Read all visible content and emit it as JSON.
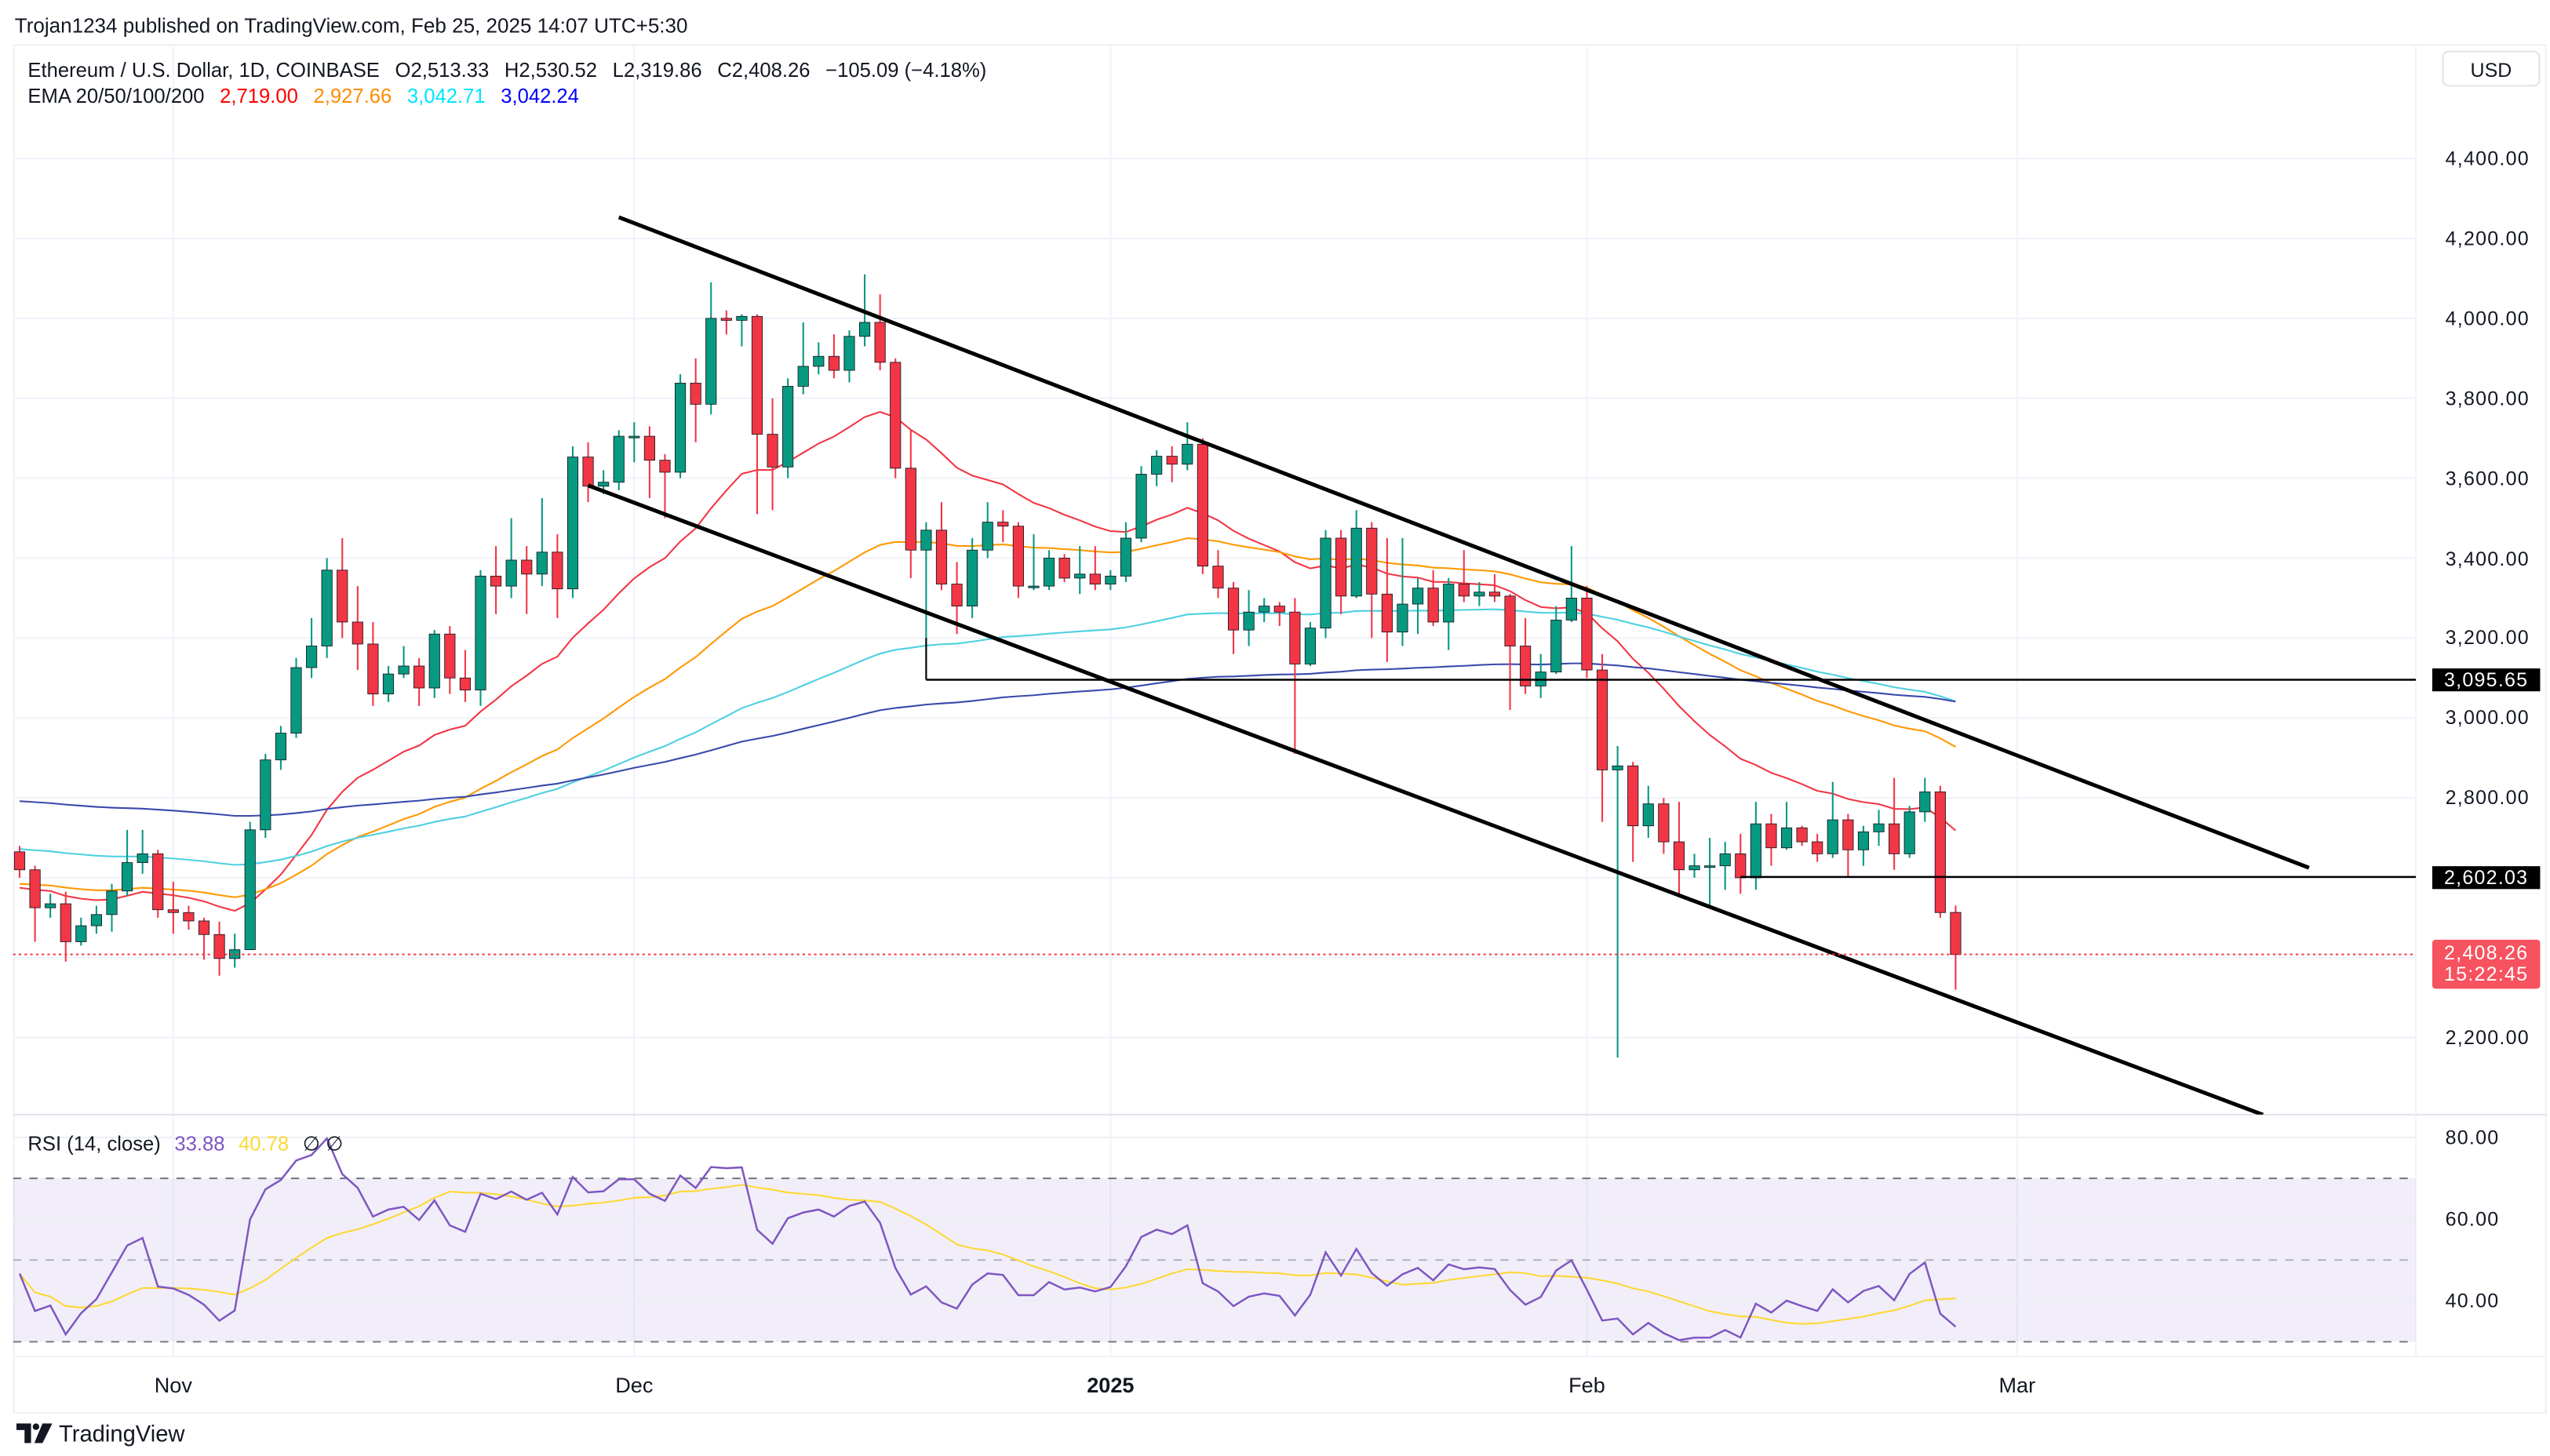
{
  "header": {
    "publisher": "Trojan1234 published on TradingView.com, Feb 25, 2025 14:07 UTC+5:30"
  },
  "legend": {
    "symbol": "Ethereum / U.S. Dollar, 1D, COINBASE",
    "open": "O2,513.33",
    "high": "H2,530.52",
    "low": "L2,319.86",
    "close": "C2,408.26",
    "change": "−105.09 (−4.18%)",
    "ema_title": "EMA 20/50/100/200",
    "ema_values": [
      "2,719.00",
      "2,927.66",
      "3,042.71",
      "3,042.24"
    ],
    "ema_colors": [
      "#ff0000",
      "#ff8c00",
      "#00e5ff",
      "#0000ff"
    ]
  },
  "currency_button": "USD",
  "price_axis": {
    "ticks": [
      "4,400.00",
      "4,200.00",
      "4,000.00",
      "3,800.00",
      "3,600.00",
      "3,400.00",
      "3,200.00",
      "3,000.00",
      "2,800.00",
      "2,200.00"
    ],
    "tick_values": [
      4400,
      4200,
      4000,
      3800,
      3600,
      3400,
      3200,
      3000,
      2800,
      2200
    ],
    "markers": [
      {
        "label": "3,095.65",
        "value": 3095.65,
        "color": "#000000"
      },
      {
        "label": "2,602.03",
        "value": 2602.03,
        "color": "#000000"
      }
    ],
    "last_price": {
      "label": "2,408.26",
      "countdown": "15:22:45",
      "value": 2408.26,
      "color": "#f7525f"
    }
  },
  "time_axis": {
    "labels": [
      {
        "text": "Nov",
        "date": "2024-11-01"
      },
      {
        "text": "Dec",
        "date": "2024-12-01"
      },
      {
        "text": "2025",
        "date": "2025-01-01",
        "bold": true
      },
      {
        "text": "Feb",
        "date": "2025-02-01"
      },
      {
        "text": "Mar",
        "date": "2025-03-01"
      }
    ]
  },
  "rsi": {
    "title": "RSI (14, close)",
    "value": "33.88",
    "ma_value": "40.78",
    "extra": "∅ ∅",
    "color": "#7e57c2",
    "ma_color": "#fdd835",
    "ticks": [
      "80.00",
      "60.00",
      "40.00"
    ],
    "tick_values": [
      80,
      60,
      40
    ],
    "bands": [
      70,
      50,
      30
    ]
  },
  "footer": {
    "logo": "TradingView"
  },
  "chart_data": {
    "type": "candlestick",
    "title": "Ethereum / U.S. Dollar, 1D, COINBASE",
    "start_date": "2024-10-22",
    "ylim": [
      2080,
      4500
    ],
    "grid": true,
    "colors": {
      "up": "#089981",
      "down": "#f23645"
    },
    "ohlc": [
      [
        2665,
        2680,
        2600,
        2620
      ],
      [
        2620,
        2630,
        2440,
        2525
      ],
      [
        2525,
        2560,
        2500,
        2535
      ],
      [
        2535,
        2565,
        2390,
        2440
      ],
      [
        2440,
        2500,
        2430,
        2480
      ],
      [
        2480,
        2530,
        2460,
        2508
      ],
      [
        2508,
        2585,
        2465,
        2567
      ],
      [
        2567,
        2720,
        2555,
        2638
      ],
      [
        2638,
        2720,
        2610,
        2660
      ],
      [
        2660,
        2670,
        2500,
        2520
      ],
      [
        2520,
        2590,
        2460,
        2513
      ],
      [
        2513,
        2530,
        2470,
        2492
      ],
      [
        2492,
        2500,
        2395,
        2458
      ],
      [
        2458,
        2490,
        2355,
        2398
      ],
      [
        2398,
        2460,
        2375,
        2420
      ],
      [
        2420,
        2740,
        2420,
        2720
      ],
      [
        2720,
        2910,
        2700,
        2895
      ],
      [
        2895,
        2980,
        2870,
        2962
      ],
      [
        2962,
        3150,
        2950,
        3126
      ],
      [
        3126,
        3250,
        3100,
        3180
      ],
      [
        3180,
        3400,
        3150,
        3370
      ],
      [
        3370,
        3450,
        3200,
        3240
      ],
      [
        3240,
        3330,
        3120,
        3185
      ],
      [
        3185,
        3240,
        3030,
        3060
      ],
      [
        3060,
        3130,
        3040,
        3110
      ],
      [
        3110,
        3180,
        3100,
        3130
      ],
      [
        3130,
        3150,
        3030,
        3075
      ],
      [
        3075,
        3220,
        3050,
        3210
      ],
      [
        3210,
        3230,
        3060,
        3100
      ],
      [
        3100,
        3170,
        3040,
        3070
      ],
      [
        3070,
        3370,
        3030,
        3355
      ],
      [
        3355,
        3430,
        3260,
        3330
      ],
      [
        3330,
        3500,
        3300,
        3395
      ],
      [
        3395,
        3430,
        3260,
        3360
      ],
      [
        3360,
        3550,
        3330,
        3415
      ],
      [
        3415,
        3460,
        3250,
        3323
      ],
      [
        3323,
        3680,
        3300,
        3653
      ],
      [
        3653,
        3690,
        3540,
        3580
      ],
      [
        3580,
        3620,
        3560,
        3590
      ],
      [
        3590,
        3720,
        3570,
        3705
      ],
      [
        3705,
        3740,
        3640,
        3705
      ],
      [
        3705,
        3730,
        3550,
        3645
      ],
      [
        3645,
        3660,
        3500,
        3615
      ],
      [
        3615,
        3860,
        3600,
        3838
      ],
      [
        3838,
        3900,
        3690,
        3785
      ],
      [
        3785,
        4090,
        3760,
        4000
      ],
      [
        4000,
        4020,
        3960,
        3995
      ],
      [
        3995,
        4010,
        3930,
        4005
      ],
      [
        4005,
        4010,
        3510,
        3710
      ],
      [
        3710,
        3800,
        3520,
        3628
      ],
      [
        3628,
        3850,
        3600,
        3830
      ],
      [
        3830,
        3990,
        3810,
        3880
      ],
      [
        3880,
        3940,
        3860,
        3905
      ],
      [
        3905,
        3960,
        3850,
        3870
      ],
      [
        3870,
        3970,
        3840,
        3955
      ],
      [
        3955,
        4110,
        3930,
        3990
      ],
      [
        3990,
        4060,
        3870,
        3890
      ],
      [
        3890,
        3900,
        3600,
        3625
      ],
      [
        3625,
        3720,
        3350,
        3420
      ],
      [
        3420,
        3490,
        3100,
        3470
      ],
      [
        3470,
        3540,
        3320,
        3335
      ],
      [
        3335,
        3390,
        3210,
        3280
      ],
      [
        3280,
        3450,
        3250,
        3420
      ],
      [
        3420,
        3540,
        3400,
        3490
      ],
      [
        3490,
        3520,
        3440,
        3480
      ],
      [
        3480,
        3490,
        3300,
        3330
      ],
      [
        3330,
        3460,
        3320,
        3330
      ],
      [
        3330,
        3420,
        3320,
        3400
      ],
      [
        3400,
        3410,
        3340,
        3350
      ],
      [
        3350,
        3430,
        3310,
        3360
      ],
      [
        3360,
        3430,
        3320,
        3335
      ],
      [
        3335,
        3370,
        3320,
        3355
      ],
      [
        3355,
        3490,
        3340,
        3450
      ],
      [
        3450,
        3630,
        3440,
        3610
      ],
      [
        3610,
        3670,
        3580,
        3655
      ],
      [
        3655,
        3680,
        3590,
        3635
      ],
      [
        3635,
        3740,
        3620,
        3685
      ],
      [
        3685,
        3700,
        3360,
        3380
      ],
      [
        3380,
        3420,
        3300,
        3325
      ],
      [
        3325,
        3340,
        3160,
        3220
      ],
      [
        3220,
        3320,
        3180,
        3265
      ],
      [
        3265,
        3300,
        3240,
        3280
      ],
      [
        3280,
        3290,
        3230,
        3265
      ],
      [
        3265,
        3300,
        2910,
        3135
      ],
      [
        3135,
        3240,
        3130,
        3225
      ],
      [
        3225,
        3470,
        3200,
        3450
      ],
      [
        3450,
        3470,
        3260,
        3305
      ],
      [
        3305,
        3520,
        3300,
        3475
      ],
      [
        3475,
        3490,
        3200,
        3310
      ],
      [
        3310,
        3450,
        3140,
        3215
      ],
      [
        3215,
        3450,
        3180,
        3285
      ],
      [
        3285,
        3350,
        3210,
        3325
      ],
      [
        3325,
        3370,
        3230,
        3240
      ],
      [
        3240,
        3350,
        3170,
        3335
      ],
      [
        3335,
        3420,
        3290,
        3305
      ],
      [
        3305,
        3340,
        3280,
        3315
      ],
      [
        3315,
        3360,
        3290,
        3305
      ],
      [
        3305,
        3310,
        3020,
        3180
      ],
      [
        3180,
        3250,
        3060,
        3080
      ],
      [
        3080,
        3160,
        3050,
        3115
      ],
      [
        3115,
        3280,
        3110,
        3245
      ],
      [
        3245,
        3430,
        3240,
        3300
      ],
      [
        3300,
        3330,
        3100,
        3120
      ],
      [
        3120,
        3160,
        2740,
        2870
      ],
      [
        2870,
        2930,
        2150,
        2880
      ],
      [
        2880,
        2890,
        2640,
        2730
      ],
      [
        2730,
        2830,
        2700,
        2785
      ],
      [
        2785,
        2800,
        2660,
        2690
      ],
      [
        2690,
        2790,
        2560,
        2620
      ],
      [
        2620,
        2660,
        2600,
        2630
      ],
      [
        2630,
        2700,
        2530,
        2630
      ],
      [
        2630,
        2690,
        2570,
        2660
      ],
      [
        2660,
        2710,
        2560,
        2600
      ],
      [
        2600,
        2790,
        2570,
        2735
      ],
      [
        2735,
        2760,
        2630,
        2675
      ],
      [
        2675,
        2790,
        2670,
        2725
      ],
      [
        2725,
        2730,
        2680,
        2690
      ],
      [
        2690,
        2710,
        2640,
        2660
      ],
      [
        2660,
        2840,
        2650,
        2745
      ],
      [
        2745,
        2760,
        2600,
        2670
      ],
      [
        2670,
        2730,
        2630,
        2715
      ],
      [
        2715,
        2770,
        2680,
        2735
      ],
      [
        2735,
        2850,
        2620,
        2660
      ],
      [
        2660,
        2780,
        2650,
        2765
      ],
      [
        2765,
        2850,
        2740,
        2815
      ],
      [
        2815,
        2830,
        2500,
        2513
      ],
      [
        2513.33,
        2530.52,
        2319.86,
        2408.26
      ]
    ],
    "indicators": [
      {
        "name": "EMA 20",
        "period": 20,
        "color": "#f23645",
        "last": 2719.0
      },
      {
        "name": "EMA 50",
        "period": 50,
        "color": "#ff9800",
        "last": 2927.66
      },
      {
        "name": "EMA 100",
        "period": 100,
        "color": "#4dd0e1",
        "last": 3042.71
      },
      {
        "name": "EMA 200",
        "period": 200,
        "color": "#3949ab",
        "last": 3042.24
      }
    ],
    "drawings": {
      "trendlines": [
        {
          "from": [
            "2024-11-30",
            4253
          ],
          "to": [
            "2025-03-20",
            2625
          ]
        },
        {
          "from": [
            "2024-11-28",
            3582
          ],
          "to": [
            "2025-03-17",
            2007
          ]
        }
      ],
      "horizontal_rays": [
        {
          "from": "2024-12-20",
          "value": 3095.65
        },
        {
          "from": "2025-02-11",
          "value": 2602.03
        }
      ]
    }
  }
}
